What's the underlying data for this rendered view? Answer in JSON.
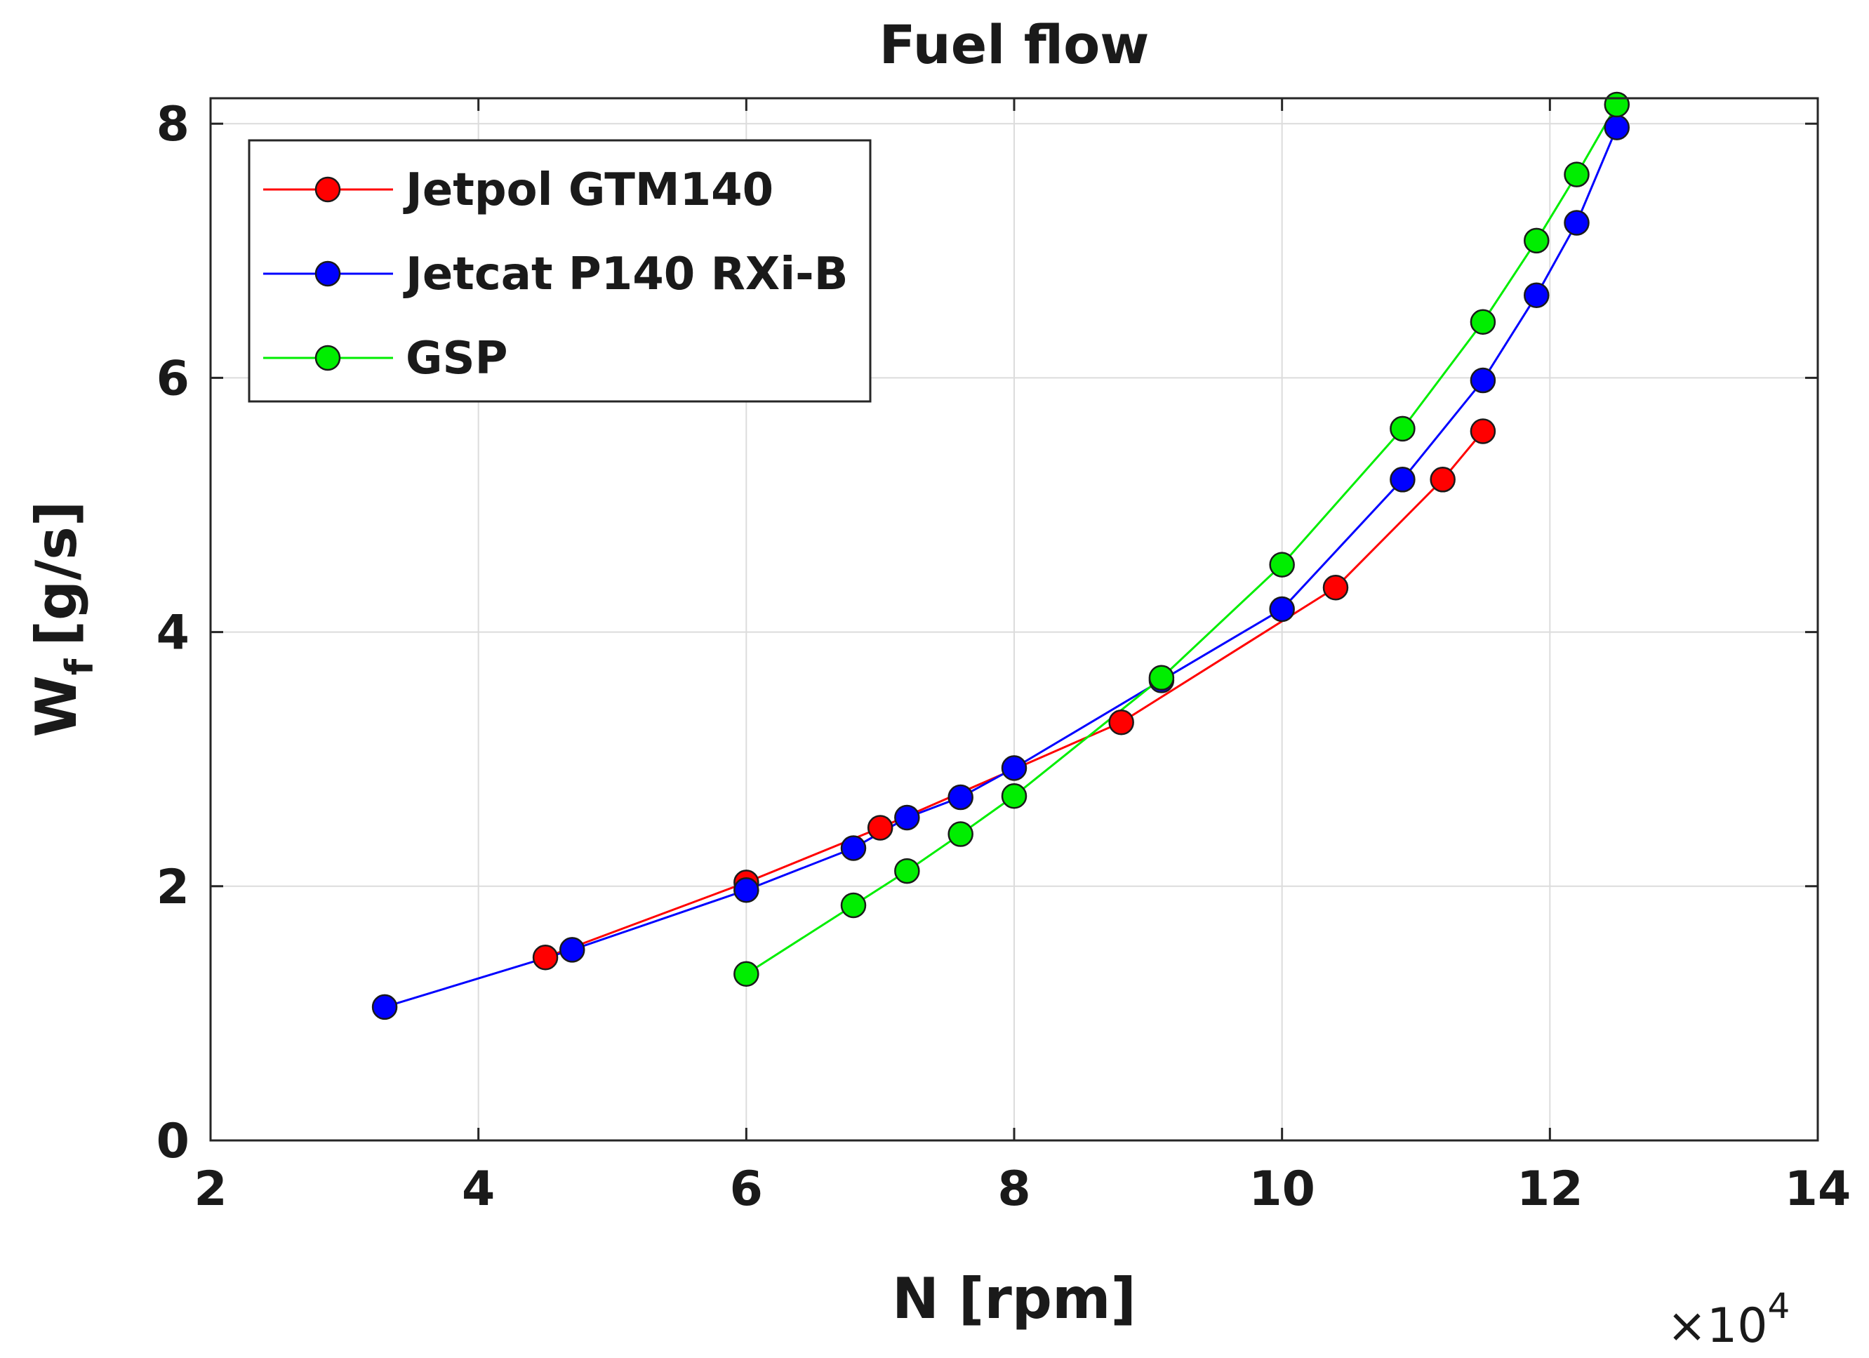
{
  "chart_data": {
    "type": "line",
    "title": "Fuel flow",
    "xlabel": "N [rpm]",
    "ylabel_main": "W",
    "ylabel_sub": "f",
    "ylabel_unit": "[g/s]",
    "x_multiplier_prefix": "×10",
    "x_multiplier_exp": "4",
    "xlim": [
      2,
      14
    ],
    "ylim": [
      0,
      8.2
    ],
    "xticks": [
      2,
      4,
      6,
      8,
      10,
      12,
      14
    ],
    "yticks": [
      0,
      2,
      4,
      6,
      8
    ],
    "grid": true,
    "legend_position": "top-left",
    "series": [
      {
        "name": "Jetpol GTM140",
        "color": "#ff0000",
        "x": [
          4.5,
          6.0,
          7.0,
          8.8,
          10.4,
          11.2,
          11.5
        ],
        "y": [
          1.44,
          2.03,
          2.46,
          3.29,
          4.35,
          5.2,
          5.58
        ]
      },
      {
        "name": "Jetcat P140 RXi-B",
        "color": "#0000ff",
        "x": [
          3.3,
          4.7,
          6.0,
          6.8,
          7.2,
          7.6,
          8.0,
          9.1,
          10.0,
          10.9,
          11.5,
          11.9,
          12.2,
          12.5
        ],
        "y": [
          1.05,
          1.5,
          1.97,
          2.3,
          2.54,
          2.7,
          2.93,
          3.62,
          4.18,
          5.2,
          5.98,
          6.65,
          7.22,
          7.97
        ]
      },
      {
        "name": "GSP",
        "color": "#00ee00",
        "x": [
          6.0,
          6.8,
          7.2,
          7.6,
          8.0,
          9.1,
          10.0,
          10.9,
          11.5,
          11.9,
          12.2,
          12.5
        ],
        "y": [
          1.31,
          1.85,
          2.12,
          2.41,
          2.71,
          3.64,
          4.53,
          5.6,
          6.44,
          7.08,
          7.6,
          8.15
        ]
      }
    ]
  }
}
